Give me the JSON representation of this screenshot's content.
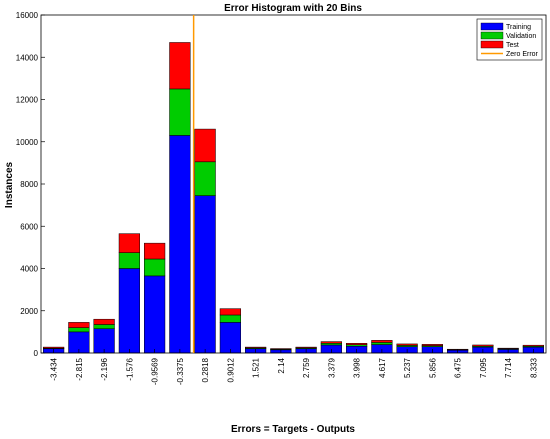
{
  "chart_data": {
    "type": "bar",
    "stacked": true,
    "title": "Error Histogram with 20 Bins",
    "xlabel": "Errors = Targets - Outputs",
    "ylabel": "Instances",
    "ylim": [
      0,
      16000
    ],
    "yticks": [
      0,
      2000,
      4000,
      6000,
      8000,
      10000,
      12000,
      14000,
      16000
    ],
    "grid": false,
    "legend_position": "top-right",
    "categories": [
      "-3.434",
      "-2.815",
      "-2.196",
      "-1.576",
      "-0.9569",
      "-0.3375",
      "0.2818",
      "0.9012",
      "1.521",
      "2.14",
      "2.759",
      "3.379",
      "3.998",
      "4.617",
      "5.237",
      "5.856",
      "6.475",
      "7.095",
      "7.714",
      "8.333"
    ],
    "series": [
      {
        "name": "Training",
        "color": "#0000ff",
        "values": [
          200,
          1000,
          1150,
          4000,
          3650,
          10300,
          7450,
          1450,
          200,
          150,
          200,
          380,
          320,
          400,
          300,
          300,
          130,
          280,
          170,
          280
        ]
      },
      {
        "name": "Validation",
        "color": "#00cc00",
        "values": [
          30,
          200,
          200,
          750,
          800,
          2200,
          1600,
          350,
          40,
          30,
          40,
          80,
          70,
          100,
          60,
          50,
          20,
          40,
          30,
          40
        ]
      },
      {
        "name": "Test",
        "color": "#ff0000",
        "values": [
          50,
          250,
          250,
          900,
          750,
          2200,
          1550,
          300,
          40,
          30,
          40,
          80,
          70,
          100,
          70,
          60,
          30,
          60,
          30,
          50
        ]
      }
    ],
    "reference_line": {
      "name": "Zero Error",
      "x": 0,
      "color": "#ff9900"
    }
  }
}
